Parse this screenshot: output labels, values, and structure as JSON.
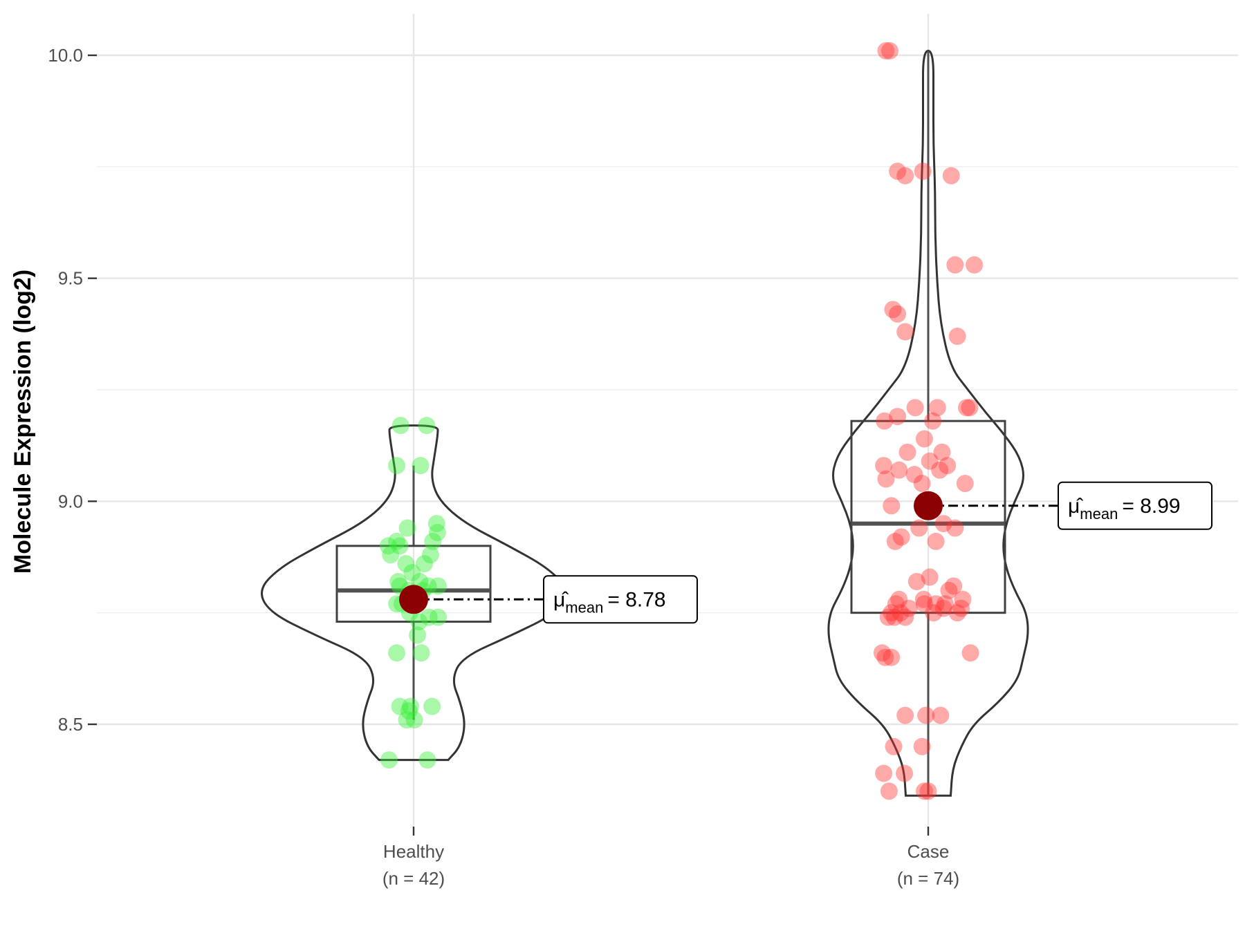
{
  "chart_data": {
    "type": "violin",
    "title": "",
    "xlabel": "",
    "ylabel": "Molecule Expression (log2)",
    "ylim": [
      8.28,
      10.08
    ],
    "yticks": [
      8.5,
      9.0,
      9.5,
      10.0
    ],
    "ytick_labels": [
      "8.5",
      "9.0",
      "9.5",
      "10.0"
    ],
    "grid": true,
    "groups": [
      {
        "name": "Healthy",
        "count_label": "(n = 42)",
        "color": "#33ee33",
        "min": 8.42,
        "q1": 8.73,
        "median": 8.8,
        "q3": 8.9,
        "max": 9.17,
        "whisker_low": 8.51,
        "whisker_high": 9.08,
        "mean": 8.78,
        "mean_label_mu": "μ̂",
        "mean_label_sub": "mean",
        "mean_label_value": "= 8.78",
        "violin_profile": [
          [
            8.42,
            0.2
          ],
          [
            8.45,
            0.27
          ],
          [
            8.5,
            0.3
          ],
          [
            8.55,
            0.27
          ],
          [
            8.6,
            0.22
          ],
          [
            8.65,
            0.28
          ],
          [
            8.7,
            0.57
          ],
          [
            8.75,
            0.83
          ],
          [
            8.8,
            0.9
          ],
          [
            8.85,
            0.78
          ],
          [
            8.9,
            0.55
          ],
          [
            8.95,
            0.3
          ],
          [
            9.0,
            0.15
          ],
          [
            9.05,
            0.1
          ],
          [
            9.1,
            0.12
          ],
          [
            9.15,
            0.14
          ],
          [
            9.17,
            0.14
          ]
        ],
        "points": [
          [
            -0.32,
            8.42
          ],
          [
            0.18,
            8.42
          ],
          [
            -0.18,
            8.54
          ],
          [
            -0.04,
            8.54
          ],
          [
            -0.09,
            8.51
          ],
          [
            0.01,
            8.51
          ],
          [
            -0.06,
            8.53
          ],
          [
            0.24,
            8.54
          ],
          [
            -0.22,
            8.66
          ],
          [
            0.1,
            8.66
          ],
          [
            0.07,
            8.73
          ],
          [
            -0.05,
            8.75
          ],
          [
            0.2,
            8.74
          ],
          [
            0.32,
            8.74
          ],
          [
            -0.22,
            8.77
          ],
          [
            -0.15,
            8.77
          ],
          [
            0.01,
            8.78
          ],
          [
            0.12,
            8.8
          ],
          [
            -0.18,
            8.81
          ],
          [
            0.19,
            8.81
          ],
          [
            0.32,
            8.81
          ],
          [
            -0.2,
            8.82
          ],
          [
            0.08,
            8.82
          ],
          [
            -0.06,
            8.8
          ],
          [
            0.04,
            8.77
          ],
          [
            -0.3,
            8.88
          ],
          [
            0.22,
            8.88
          ],
          [
            -0.33,
            8.9
          ],
          [
            -0.22,
            8.91
          ],
          [
            -0.18,
            8.9
          ],
          [
            0.25,
            8.91
          ],
          [
            0.31,
            8.93
          ],
          [
            -0.08,
            8.94
          ],
          [
            0.3,
            8.95
          ],
          [
            -0.22,
            9.08
          ],
          [
            0.09,
            9.08
          ],
          [
            -0.17,
            9.17
          ],
          [
            0.17,
            9.17
          ],
          [
            -0.1,
            8.86
          ],
          [
            0.14,
            8.86
          ],
          [
            -0.02,
            8.84
          ],
          [
            0.05,
            8.7
          ]
        ]
      },
      {
        "name": "Case",
        "count_label": "(n = 74)",
        "color": "#ff3333",
        "min": 8.34,
        "q1": 8.75,
        "median": 8.95,
        "q3": 9.18,
        "max": 10.01,
        "whisker_low": 8.34,
        "whisker_high": 10.01,
        "mean": 8.99,
        "mean_label_mu": "μ̂",
        "mean_label_sub": "mean",
        "mean_label_value": "= 8.99",
        "violin_profile": [
          [
            8.34,
            0.13
          ],
          [
            8.4,
            0.14
          ],
          [
            8.45,
            0.19
          ],
          [
            8.5,
            0.26
          ],
          [
            8.55,
            0.41
          ],
          [
            8.6,
            0.52
          ],
          [
            8.65,
            0.55
          ],
          [
            8.7,
            0.58
          ],
          [
            8.75,
            0.57
          ],
          [
            8.8,
            0.5
          ],
          [
            8.85,
            0.45
          ],
          [
            8.9,
            0.43
          ],
          [
            8.95,
            0.45
          ],
          [
            9.0,
            0.5
          ],
          [
            9.05,
            0.56
          ],
          [
            9.1,
            0.53
          ],
          [
            9.15,
            0.44
          ],
          [
            9.2,
            0.33
          ],
          [
            9.25,
            0.23
          ],
          [
            9.3,
            0.13
          ],
          [
            9.4,
            0.07
          ],
          [
            9.5,
            0.05
          ],
          [
            9.6,
            0.04
          ],
          [
            9.7,
            0.04
          ],
          [
            9.8,
            0.03
          ],
          [
            9.9,
            0.03
          ],
          [
            10.01,
            0.03
          ]
        ]
      }
    ],
    "case_points": [
      [
        -0.55,
        10.01
      ],
      [
        -0.5,
        10.01
      ],
      [
        -0.4,
        9.74
      ],
      [
        -0.3,
        9.73
      ],
      [
        -0.07,
        9.74
      ],
      [
        0.3,
        9.73
      ],
      [
        0.35,
        9.53
      ],
      [
        0.6,
        9.53
      ],
      [
        -0.46,
        9.43
      ],
      [
        -0.4,
        9.42
      ],
      [
        -0.3,
        9.38
      ],
      [
        0.38,
        9.37
      ],
      [
        -0.57,
        9.18
      ],
      [
        -0.4,
        9.19
      ],
      [
        -0.17,
        9.21
      ],
      [
        0.06,
        9.18
      ],
      [
        0.12,
        9.21
      ],
      [
        0.5,
        9.21
      ],
      [
        0.54,
        9.21
      ],
      [
        -0.05,
        9.14
      ],
      [
        -0.27,
        9.11
      ],
      [
        0.02,
        9.09
      ],
      [
        0.18,
        9.11
      ],
      [
        -0.58,
        9.08
      ],
      [
        -0.38,
        9.07
      ],
      [
        -0.18,
        9.06
      ],
      [
        0.15,
        9.07
      ],
      [
        0.25,
        9.08
      ],
      [
        -0.55,
        9.05
      ],
      [
        0.48,
        9.04
      ],
      [
        -0.08,
        9.04
      ],
      [
        -0.48,
        8.99
      ],
      [
        0.05,
        9.0
      ],
      [
        0.2,
        8.95
      ],
      [
        0.35,
        8.94
      ],
      [
        -0.12,
        8.94
      ],
      [
        -0.35,
        8.92
      ],
      [
        0.1,
        8.91
      ],
      [
        -0.43,
        8.91
      ],
      [
        -0.42,
        8.77
      ],
      [
        -0.38,
        8.78
      ],
      [
        0.27,
        8.8
      ],
      [
        0.33,
        8.81
      ],
      [
        0.45,
        8.78
      ],
      [
        -0.06,
        8.78
      ],
      [
        -0.52,
        8.74
      ],
      [
        -0.48,
        8.75
      ],
      [
        -0.44,
        8.74
      ],
      [
        -0.36,
        8.75
      ],
      [
        -0.25,
        8.76
      ],
      [
        -0.05,
        8.77
      ],
      [
        0.07,
        8.75
      ],
      [
        0.1,
        8.77
      ],
      [
        0.2,
        8.76
      ],
      [
        0.38,
        8.75
      ],
      [
        0.43,
        8.76
      ],
      [
        -0.6,
        8.66
      ],
      [
        -0.56,
        8.65
      ],
      [
        -0.48,
        8.65
      ],
      [
        0.55,
        8.66
      ],
      [
        -0.3,
        8.74
      ],
      [
        0.22,
        8.77
      ],
      [
        -0.3,
        8.52
      ],
      [
        0.16,
        8.52
      ],
      [
        -0.03,
        8.52
      ],
      [
        -0.45,
        8.45
      ],
      [
        -0.08,
        8.45
      ],
      [
        -0.58,
        8.39
      ],
      [
        -0.31,
        8.39
      ],
      [
        -0.51,
        8.35
      ],
      [
        -0.05,
        8.35
      ],
      [
        0.0,
        8.35
      ],
      [
        -0.15,
        8.82
      ],
      [
        0.02,
        8.83
      ]
    ]
  }
}
